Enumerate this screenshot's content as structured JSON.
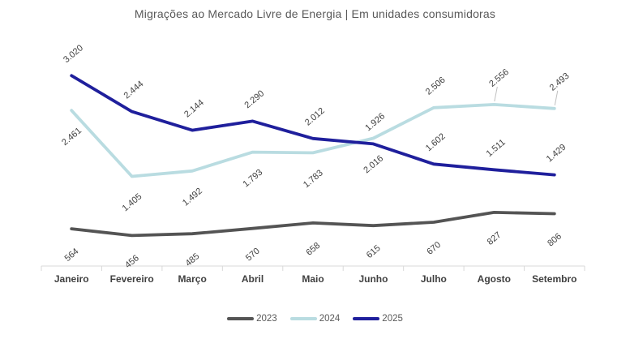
{
  "chart_data": {
    "type": "line",
    "title": "Migrações ao Mercado Livre de Energia | Em unidades consumidoras",
    "categories": [
      "Janeiro",
      "Fevereiro",
      "Março",
      "Abril",
      "Maio",
      "Junho",
      "Julho",
      "Agosto",
      "Setembro"
    ],
    "series": [
      {
        "name": "2023",
        "color": "#545454",
        "values": [
          564,
          456,
          485,
          570,
          658,
          615,
          670,
          827,
          806
        ],
        "labels": [
          "564",
          "456",
          "485",
          "570",
          "658",
          "615",
          "670",
          "827",
          "806"
        ],
        "label_side": [
          "below",
          "below",
          "below",
          "below",
          "below",
          "below",
          "below",
          "below",
          "below"
        ],
        "leader": [
          false,
          false,
          false,
          false,
          false,
          false,
          false,
          false,
          false
        ]
      },
      {
        "name": "2024",
        "color": "#B9DCE1",
        "values": [
          2461,
          1405,
          1492,
          1793,
          1783,
          2016,
          2506,
          2556,
          2493
        ],
        "labels": [
          "2.461",
          "1.405",
          "1.492",
          "1.793",
          "1.783",
          "2.016",
          "2.506",
          "2.556",
          "2.493"
        ],
        "label_side": [
          "below",
          "below",
          "below",
          "below",
          "below",
          "below",
          "above",
          "above",
          "above"
        ],
        "leader": [
          false,
          false,
          false,
          false,
          false,
          false,
          false,
          true,
          true
        ]
      },
      {
        "name": "2025",
        "color": "#1F1F9C",
        "values": [
          3020,
          2444,
          2144,
          2290,
          2012,
          1926,
          1602,
          1511,
          1429
        ],
        "labels": [
          "3.020",
          "2.444",
          "2.144",
          "2.290",
          "2.012",
          "1.926",
          "1.602",
          "1.511",
          "1.429"
        ],
        "label_side": [
          "above",
          "above",
          "above",
          "above",
          "above",
          "above",
          "above",
          "above",
          "above"
        ],
        "leader": [
          false,
          false,
          false,
          false,
          false,
          false,
          false,
          false,
          false
        ]
      }
    ],
    "ylim": [
      0,
      3500
    ],
    "grid": false,
    "legend_position": "bottom",
    "axis_color": "#D9D9D9",
    "leader_color": "#BFBFBF",
    "data_label_color": "#404040",
    "category_label_color": "#404040",
    "text_color": "#595959"
  }
}
